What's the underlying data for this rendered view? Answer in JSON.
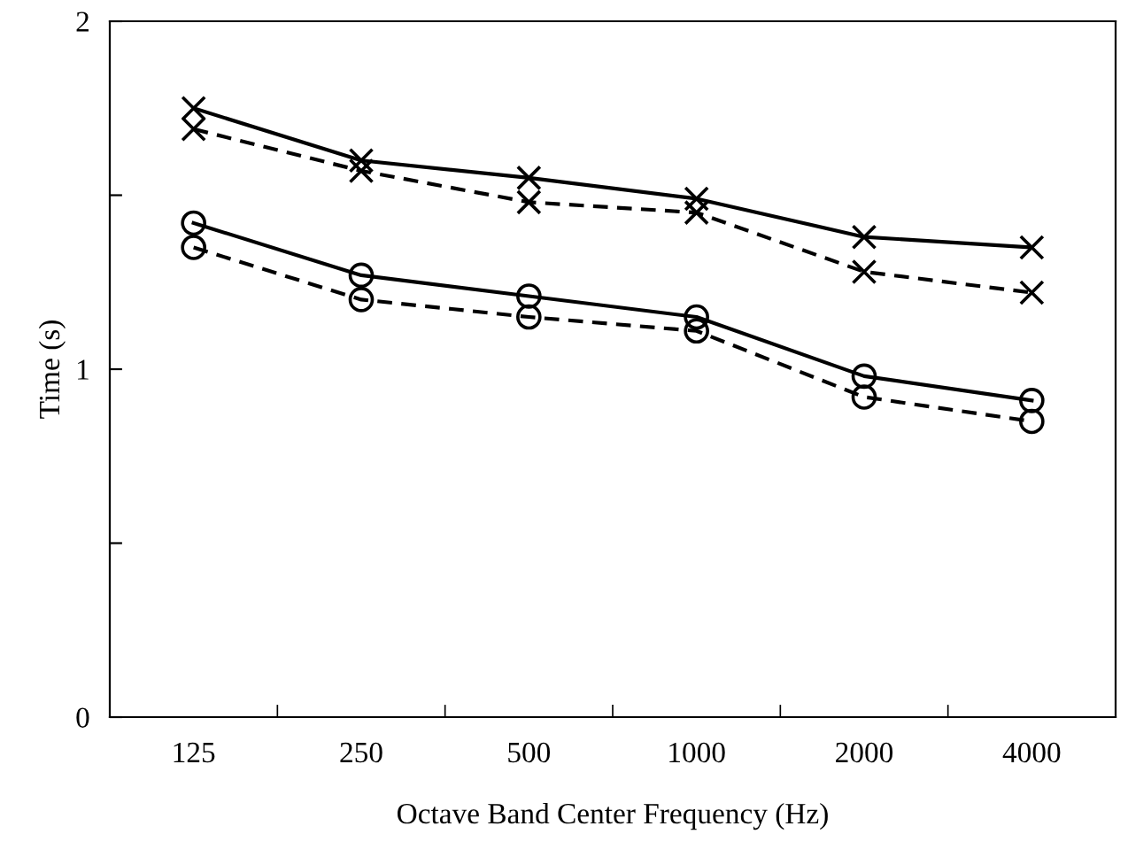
{
  "chart_data": {
    "type": "line",
    "xlabel": "Octave Band Center Frequency (Hz)",
    "ylabel": "Time (s)",
    "categories": [
      "125",
      "250",
      "500",
      "1000",
      "2000",
      "4000"
    ],
    "ylim": [
      0,
      2
    ],
    "yticks": [
      0,
      {
        "value": 0.5,
        "label": null
      },
      1,
      {
        "value": 1.5,
        "label": null
      },
      2
    ],
    "grid": false,
    "legend": false,
    "series": [
      {
        "color": "#000000",
        "marker": "cross",
        "line_style": "solid",
        "values": [
          1.75,
          1.6,
          1.55,
          1.49,
          1.38,
          1.35
        ]
      },
      {
        "color": "#000000",
        "marker": "cross",
        "line_style": "dashed",
        "values": [
          1.69,
          1.57,
          1.48,
          1.45,
          1.28,
          1.22
        ]
      },
      {
        "color": "#000000",
        "marker": "circle",
        "line_style": "solid",
        "values": [
          1.42,
          1.27,
          1.21,
          1.15,
          0.98,
          0.91
        ]
      },
      {
        "color": "#000000",
        "marker": "circle",
        "line_style": "dashed",
        "values": [
          1.35,
          1.2,
          1.15,
          1.11,
          0.92,
          0.85
        ]
      }
    ]
  }
}
